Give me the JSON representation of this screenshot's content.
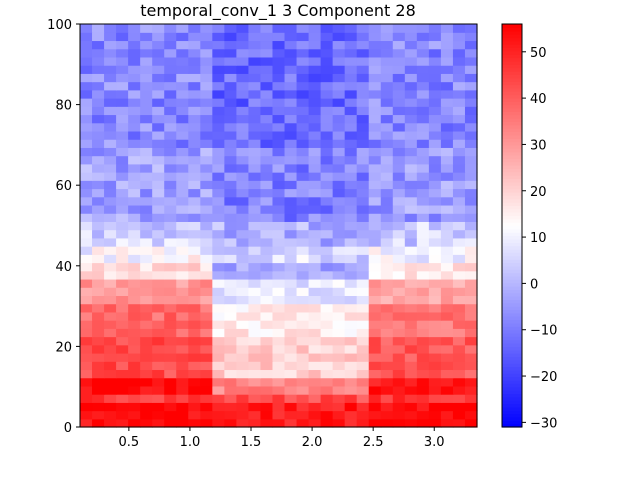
{
  "chart_data": {
    "type": "heatmap",
    "title": "temporal_conv_1 3 Component 28",
    "xlabel": "",
    "ylabel": "",
    "xlim": [
      0.1,
      3.35
    ],
    "ylim": [
      0,
      100
    ],
    "x_ticks": [
      0.5,
      1.0,
      1.5,
      2.0,
      2.5,
      3.0
    ],
    "x_tick_labels": [
      "0.5",
      "1.0",
      "1.5",
      "2.0",
      "2.5",
      "3.0"
    ],
    "y_ticks": [
      0,
      20,
      40,
      60,
      80,
      100
    ],
    "y_tick_labels": [
      "0",
      "20",
      "40",
      "60",
      "80",
      "100"
    ],
    "colorbar": {
      "cmap": "bwr",
      "vmin": -31,
      "vmax": 56,
      "ticks": [
        -30,
        -20,
        -10,
        0,
        10,
        20,
        30,
        40,
        50
      ],
      "tick_labels": [
        "−30",
        "−20",
        "−10",
        "0",
        "10",
        "20",
        "30",
        "40",
        "50"
      ]
    },
    "grid": false,
    "profile_description": "Value by frequency band (rows) averaged across time columns",
    "band_profile": [
      {
        "y_from": 0,
        "y_to": 7,
        "value": 53
      },
      {
        "y_from": 7,
        "y_to": 12,
        "value": 45
      },
      {
        "y_from": 12,
        "y_to": 22,
        "value": 33
      },
      {
        "y_from": 22,
        "y_to": 30,
        "value": 28
      },
      {
        "y_from": 30,
        "y_to": 36,
        "value": 20
      },
      {
        "y_from": 36,
        "y_to": 44,
        "value": 9
      },
      {
        "y_from": 44,
        "y_to": 52,
        "value": 2
      },
      {
        "y_from": 52,
        "y_to": 70,
        "value": -6
      },
      {
        "y_from": 70,
        "y_to": 100,
        "value": -10
      }
    ],
    "time_modulation": [
      {
        "x_from": 0.1,
        "x_to": 1.15,
        "value_offset": 10
      },
      {
        "x_from": 1.15,
        "x_to": 2.45,
        "value_offset": -12
      },
      {
        "x_from": 2.45,
        "x_to": 3.35,
        "value_offset": 8
      }
    ]
  }
}
